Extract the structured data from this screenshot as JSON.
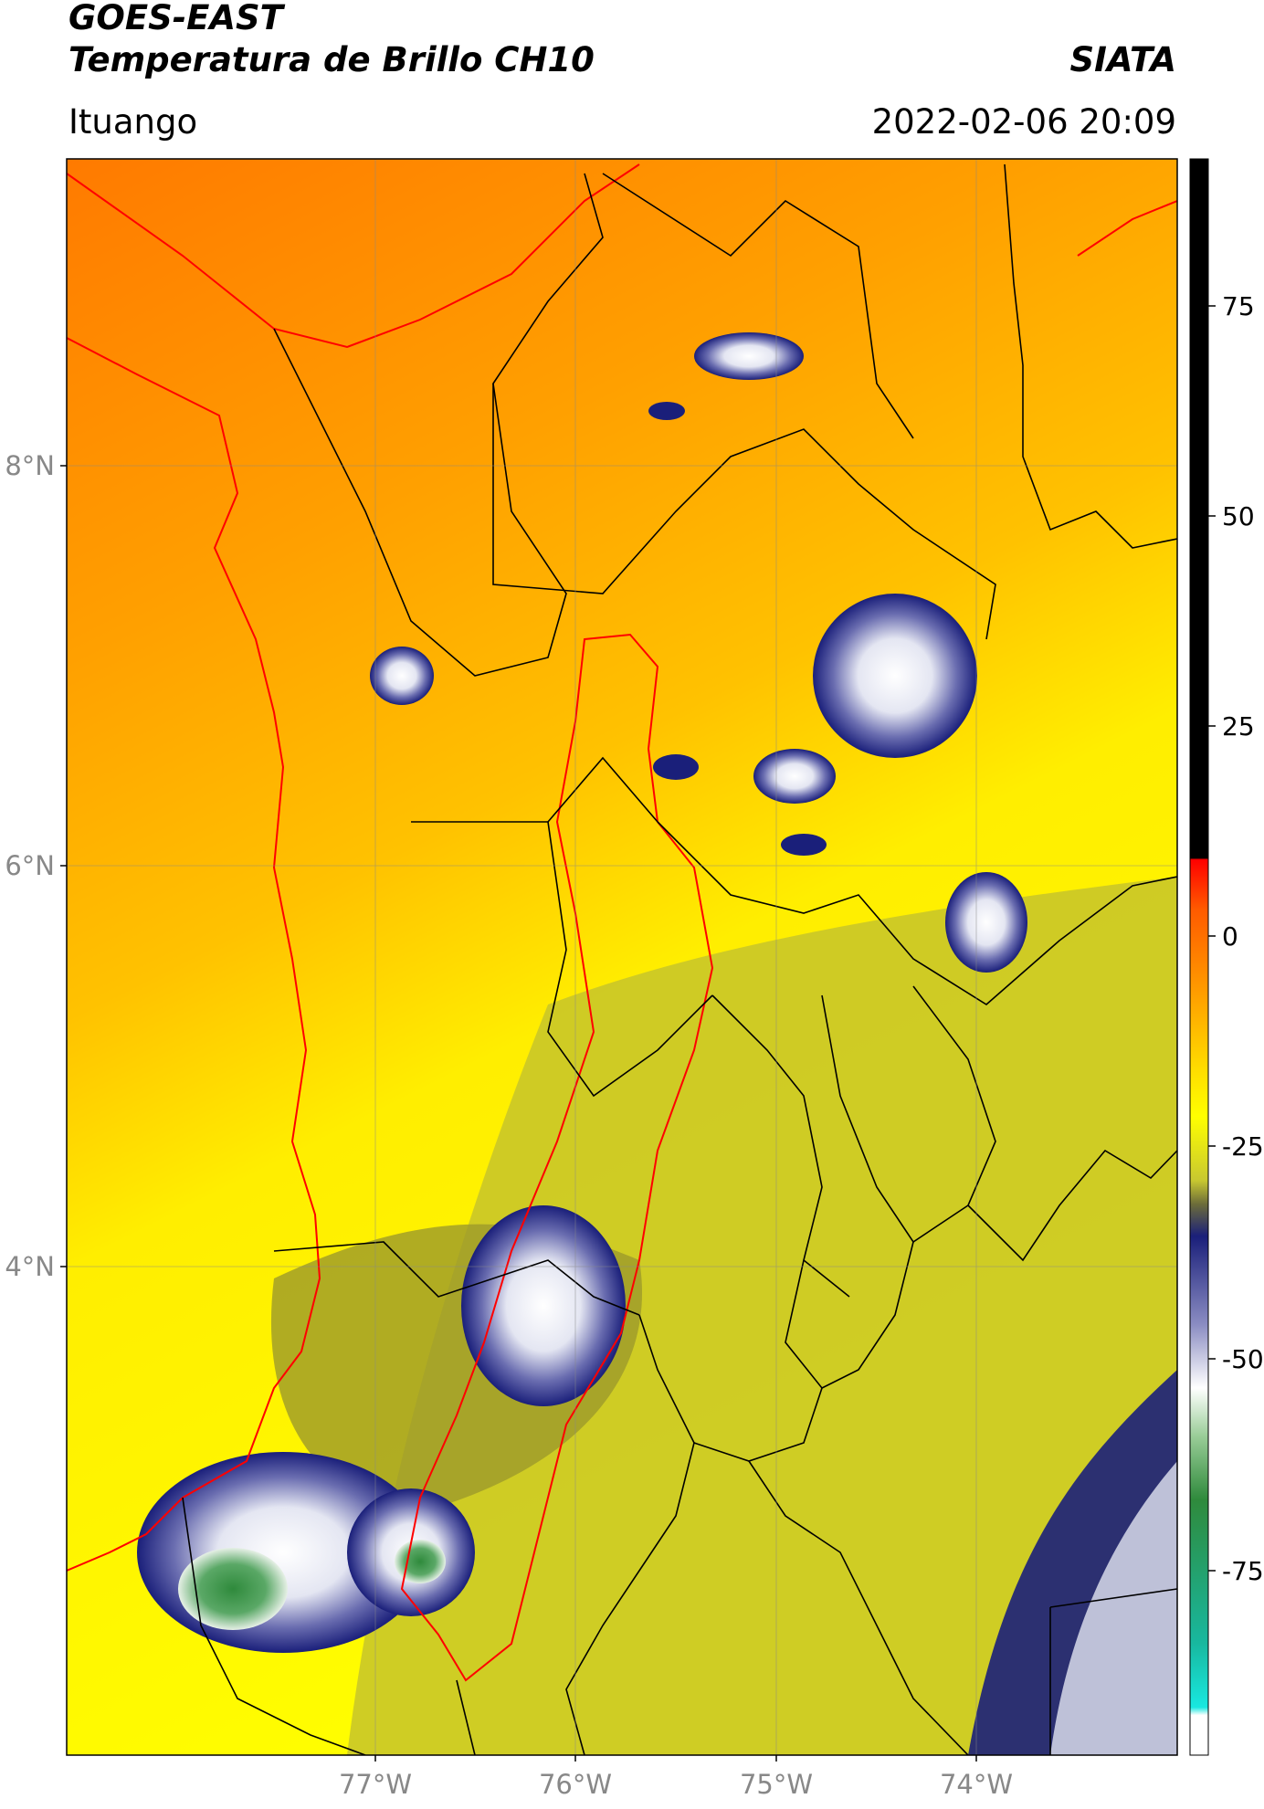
{
  "header": {
    "title_line1": "GOES-EAST",
    "title_line2": "Temperatura de Brillo CH10",
    "organization": "SIATA",
    "region": "Ituango",
    "datetime": "2022-02-06 20:09"
  },
  "map": {
    "lat_labels": [
      "8°N",
      "6°N",
      "4°N"
    ],
    "lon_labels": [
      "77°W",
      "76°W",
      "75°W",
      "74°W"
    ],
    "grid": true
  },
  "colorbar": {
    "ticks": [
      "75",
      "50",
      "25",
      "0",
      "-25",
      "-50",
      "-75"
    ],
    "colors": {
      "black": "#000000",
      "red": "#ff2a00",
      "orange": "#ff8c00",
      "yellow": "#ffff00",
      "olive": "#8f9023",
      "navy": "#1a1f7a",
      "white": "#ffffff",
      "green": "#2f8a3c",
      "cyan": "#18d8cf"
    }
  }
}
